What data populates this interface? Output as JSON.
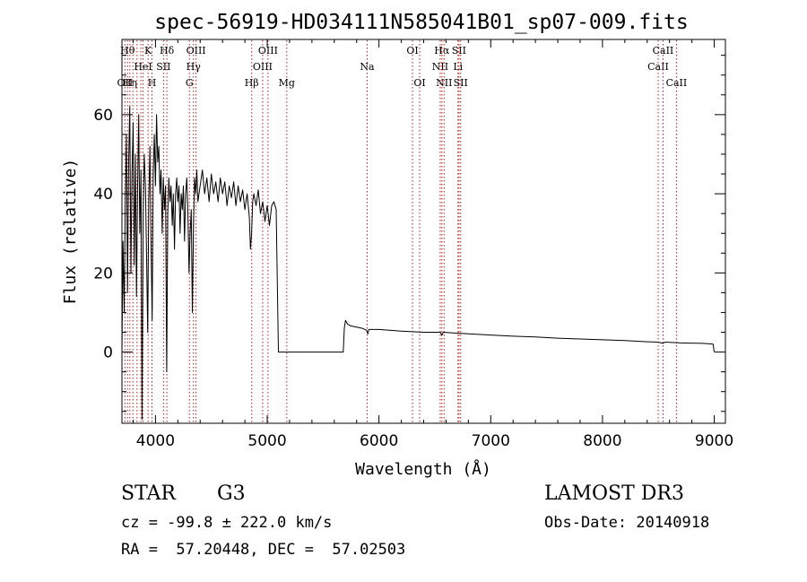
{
  "chart_data": {
    "type": "line",
    "title": "spec-56919-HD034111N585041B01_sp07-009.fits",
    "xlabel": "Wavelength (Å)",
    "ylabel": "Flux (relative)",
    "xlim": [
      3700,
      9100
    ],
    "ylim": [
      -18,
      79
    ],
    "xticks": [
      4000,
      5000,
      6000,
      7000,
      8000,
      9000
    ],
    "yticks": [
      0,
      20,
      40,
      60
    ],
    "grid": false,
    "series": [
      {
        "color": "#000000",
        "points": [
          [
            3700,
            0
          ],
          [
            3710,
            28
          ],
          [
            3720,
            10
          ],
          [
            3730,
            38
          ],
          [
            3740,
            55
          ],
          [
            3750,
            15
          ],
          [
            3760,
            48
          ],
          [
            3770,
            62
          ],
          [
            3780,
            20
          ],
          [
            3790,
            45
          ],
          [
            3800,
            58
          ],
          [
            3810,
            22
          ],
          [
            3820,
            50
          ],
          [
            3830,
            14
          ],
          [
            3840,
            40
          ],
          [
            3850,
            60
          ],
          [
            3860,
            30
          ],
          [
            3870,
            46
          ],
          [
            3880,
            -17
          ],
          [
            3890,
            35
          ],
          [
            3900,
            50
          ],
          [
            3910,
            42
          ],
          [
            3920,
            25
          ],
          [
            3930,
            5
          ],
          [
            3940,
            38
          ],
          [
            3950,
            52
          ],
          [
            3960,
            28
          ],
          [
            3970,
            8
          ],
          [
            3980,
            45
          ],
          [
            3990,
            55
          ],
          [
            4000,
            42
          ],
          [
            4010,
            60
          ],
          [
            4020,
            48
          ],
          [
            4030,
            52
          ],
          [
            4040,
            40
          ],
          [
            4050,
            46
          ],
          [
            4060,
            30
          ],
          [
            4070,
            44
          ],
          [
            4080,
            36
          ],
          [
            4090,
            42
          ],
          [
            4100,
            -5
          ],
          [
            4110,
            35
          ],
          [
            4120,
            44
          ],
          [
            4130,
            38
          ],
          [
            4140,
            42
          ],
          [
            4150,
            32
          ],
          [
            4160,
            40
          ],
          [
            4170,
            26
          ],
          [
            4180,
            40
          ],
          [
            4190,
            44
          ],
          [
            4200,
            38
          ],
          [
            4210,
            42
          ],
          [
            4220,
            30
          ],
          [
            4230,
            40
          ],
          [
            4240,
            36
          ],
          [
            4250,
            42
          ],
          [
            4260,
            28
          ],
          [
            4270,
            40
          ],
          [
            4280,
            44
          ],
          [
            4290,
            36
          ],
          [
            4300,
            20
          ],
          [
            4310,
            30
          ],
          [
            4320,
            36
          ],
          [
            4330,
            10
          ],
          [
            4340,
            32
          ],
          [
            4350,
            44
          ],
          [
            4360,
            40
          ],
          [
            4370,
            46
          ],
          [
            4380,
            38
          ],
          [
            4400,
            42
          ],
          [
            4420,
            46
          ],
          [
            4440,
            40
          ],
          [
            4460,
            44
          ],
          [
            4480,
            38
          ],
          [
            4500,
            45
          ],
          [
            4520,
            40
          ],
          [
            4540,
            43
          ],
          [
            4560,
            38
          ],
          [
            4580,
            44
          ],
          [
            4600,
            40
          ],
          [
            4620,
            43
          ],
          [
            4640,
            37
          ],
          [
            4660,
            42
          ],
          [
            4680,
            39
          ],
          [
            4700,
            43
          ],
          [
            4720,
            37
          ],
          [
            4740,
            42
          ],
          [
            4760,
            38
          ],
          [
            4780,
            41
          ],
          [
            4800,
            36
          ],
          [
            4820,
            40
          ],
          [
            4840,
            34
          ],
          [
            4850,
            26
          ],
          [
            4860,
            30
          ],
          [
            4870,
            38
          ],
          [
            4880,
            40
          ],
          [
            4900,
            37
          ],
          [
            4920,
            41
          ],
          [
            4940,
            35
          ],
          [
            4960,
            38
          ],
          [
            4980,
            33
          ],
          [
            5000,
            37
          ],
          [
            5020,
            32
          ],
          [
            5040,
            37
          ],
          [
            5060,
            38
          ],
          [
            5080,
            36
          ],
          [
            5100,
            0
          ],
          [
            5200,
            0
          ],
          [
            5400,
            0
          ],
          [
            5600,
            0
          ],
          [
            5680,
            0
          ],
          [
            5690,
            6
          ],
          [
            5700,
            8
          ],
          [
            5720,
            7
          ],
          [
            5750,
            6.6
          ],
          [
            5800,
            6.3
          ],
          [
            5850,
            6.0
          ],
          [
            5890,
            5.5
          ],
          [
            5900,
            4.6
          ],
          [
            5910,
            5.7
          ],
          [
            6000,
            5.7
          ],
          [
            6200,
            5.3
          ],
          [
            6400,
            5.0
          ],
          [
            6550,
            5.0
          ],
          [
            6562,
            4.2
          ],
          [
            6575,
            5.0
          ],
          [
            6800,
            4.6
          ],
          [
            7000,
            4.3
          ],
          [
            7200,
            4.0
          ],
          [
            7400,
            3.8
          ],
          [
            7600,
            3.5
          ],
          [
            7800,
            3.3
          ],
          [
            8000,
            3.1
          ],
          [
            8200,
            2.9
          ],
          [
            8400,
            2.6
          ],
          [
            8500,
            2.5
          ],
          [
            8540,
            2.2
          ],
          [
            8560,
            2.5
          ],
          [
            8700,
            2.3
          ],
          [
            8900,
            2.2
          ],
          [
            8990,
            2.0
          ],
          [
            9000,
            0
          ]
        ]
      }
    ],
    "lines": [
      {
        "x": 3727,
        "label": "OII",
        "row": 3
      },
      {
        "x": 3750,
        "label": "Hθ",
        "row": 1
      },
      {
        "x": 3771,
        "label": "Hη",
        "row": 3
      },
      {
        "x": 3798,
        "label": "",
        "row": 0
      },
      {
        "x": 3835,
        "label": "",
        "row": 0
      },
      {
        "x": 3869,
        "label": "",
        "row": 0
      },
      {
        "x": 3889,
        "label": "HeI",
        "row": 2
      },
      {
        "x": 3934,
        "label": "K",
        "row": 1
      },
      {
        "x": 3969,
        "label": "H",
        "row": 3
      },
      {
        "x": 4072,
        "label": "SII",
        "row": 2
      },
      {
        "x": 4102,
        "label": "Hδ",
        "row": 1
      },
      {
        "x": 4304,
        "label": "G",
        "row": 3
      },
      {
        "x": 4340,
        "label": "Hγ",
        "row": 2
      },
      {
        "x": 4363,
        "label": "OIII",
        "row": 1
      },
      {
        "x": 4861,
        "label": "Hβ",
        "row": 3
      },
      {
        "x": 4959,
        "label": "OIII",
        "row": 2
      },
      {
        "x": 5007,
        "label": "OIII",
        "row": 1
      },
      {
        "x": 5175,
        "label": "Mg",
        "row": 3
      },
      {
        "x": 5894,
        "label": "Na",
        "row": 2
      },
      {
        "x": 6300,
        "label": "OI",
        "row": 1
      },
      {
        "x": 6364,
        "label": "OI",
        "row": 3
      },
      {
        "x": 6548,
        "label": "NII",
        "row": 2
      },
      {
        "x": 6563,
        "label": "Hα",
        "row": 1
      },
      {
        "x": 6583,
        "label": "NII",
        "row": 3
      },
      {
        "x": 6707,
        "label": "Li",
        "row": 2
      },
      {
        "x": 6716,
        "label": "SII",
        "row": 1
      },
      {
        "x": 6731,
        "label": "SII",
        "row": 3
      },
      {
        "x": 8498,
        "label": "CaII",
        "row": 2
      },
      {
        "x": 8542,
        "label": "CaII",
        "row": 1
      },
      {
        "x": 8662,
        "label": "CaII",
        "row": 3
      }
    ]
  },
  "info": {
    "class_label": "STAR",
    "subclass": "G3",
    "survey": "LAMOST DR3",
    "cz": "cz = -99.8 ± 222.0 km/s",
    "obs_date": "Obs-Date: 20140918",
    "radec": "RA =  57.20448, DEC =  57.02503"
  },
  "colors": {
    "spectrum": "#000000",
    "line_marker": "#b22222",
    "frame": "#000000"
  }
}
